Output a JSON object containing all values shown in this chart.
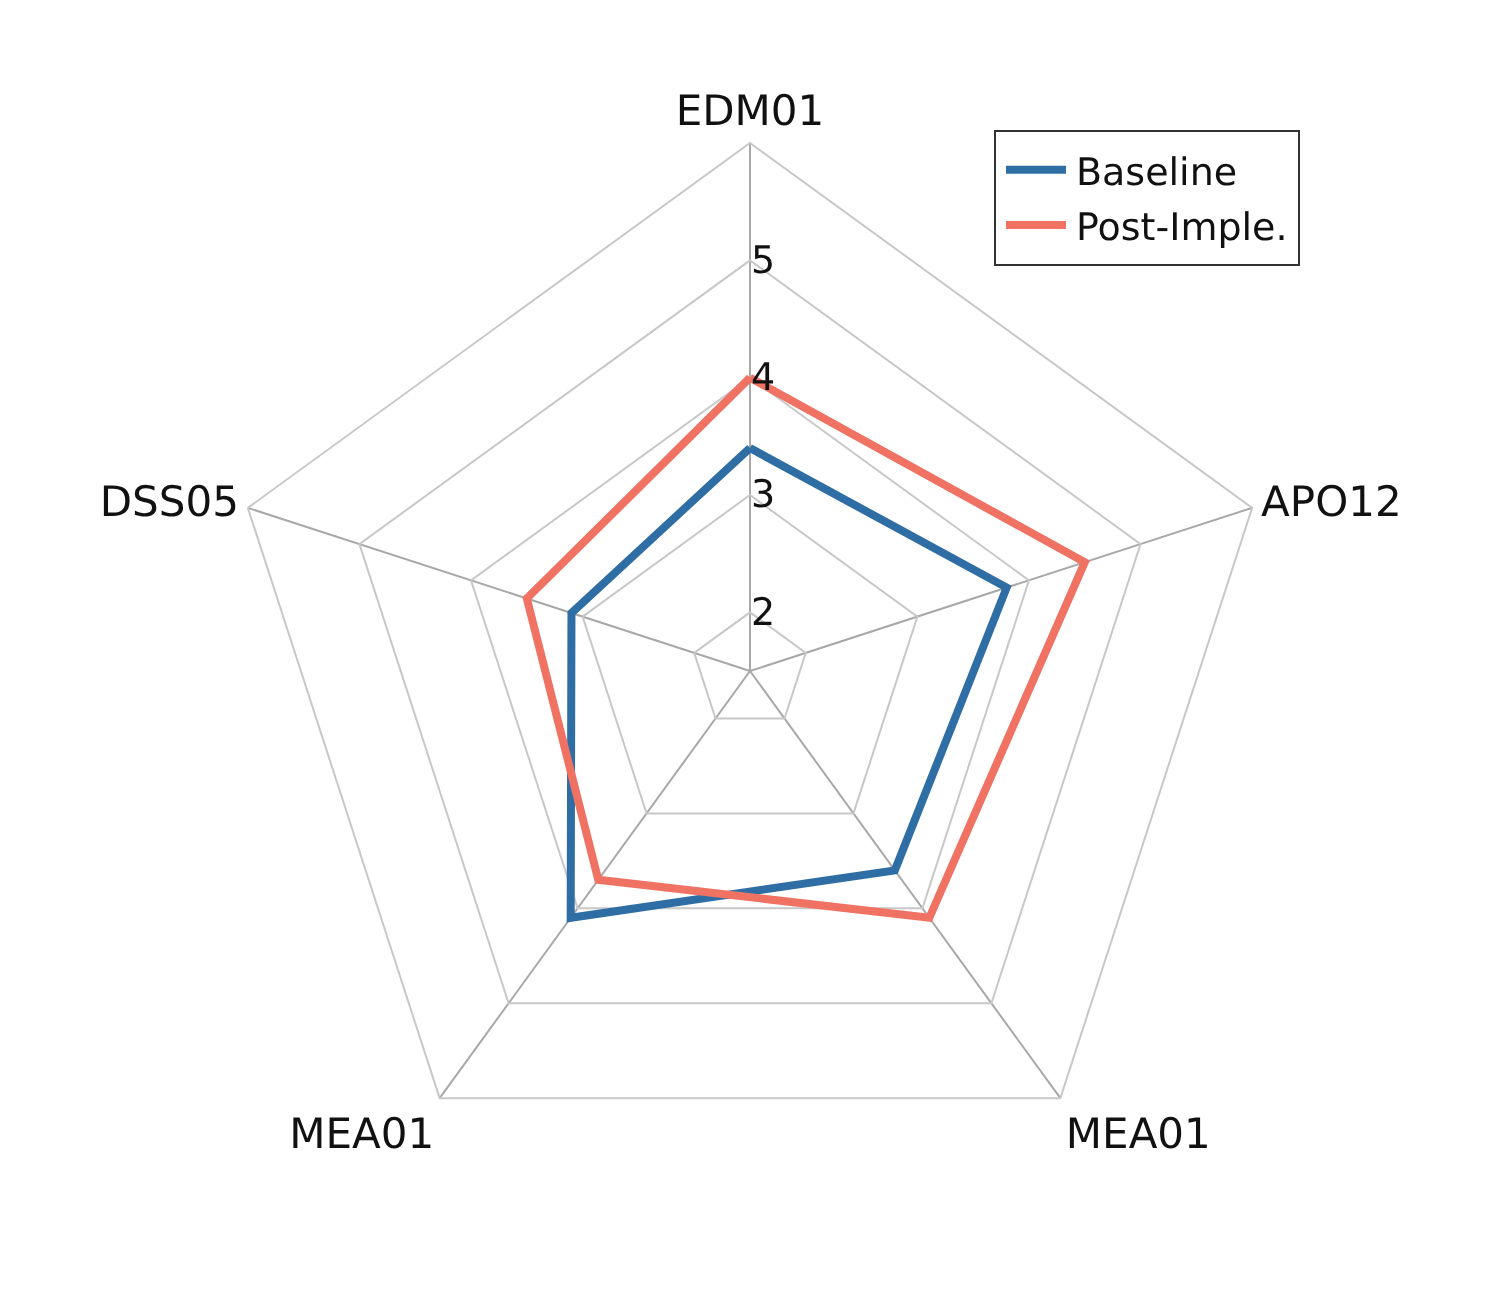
{
  "chart_data": {
    "type": "radar",
    "categories": [
      "EDM01",
      "APO12",
      "MEA01",
      "MEA01",
      "DSS05"
    ],
    "series": [
      {
        "name": "Baseline",
        "color": "#2f6ea5",
        "values": [
          3.4,
          3.8,
          3.6,
          4.1,
          3.1
        ]
      },
      {
        "name": "Post-Imple.",
        "color": "#f07262",
        "values": [
          4.0,
          4.5,
          4.1,
          3.7,
          3.5
        ]
      }
    ],
    "ylim": [
      1.5,
      6
    ],
    "yticks": [
      2,
      3,
      4,
      5
    ],
    "grid": true,
    "legend": "top right",
    "marker": "none",
    "line_style": "solid"
  }
}
